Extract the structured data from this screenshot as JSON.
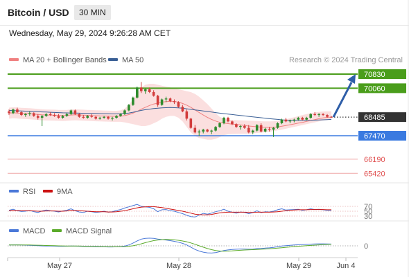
{
  "header": {
    "title": "Bitcoin / USD",
    "timeframe": "30 MIN"
  },
  "timestamp": "Wednesday, May 29, 2024 9:26:28 AM CET",
  "colors": {
    "resistance": "#4a9d1b",
    "support": "#3a7ae0",
    "current": "#333333",
    "extra_support": "#e05050",
    "up_candle": "#2e8b2e",
    "down_candle": "#d23c3c",
    "bollinger_fill": "#fad9d9",
    "ma20": "#f08080",
    "ma50": "#3a5f95",
    "rsi": "#4a78d8",
    "rsi_ma": "#cc1111",
    "macd": "#4a78d8",
    "macd_signal": "#5aaa2a",
    "arrow": "#2e5ea8"
  },
  "chart_data": [
    {
      "type": "candlestick",
      "legend": [
        {
          "name": "MA 20 + Bollinger Bands",
          "color": "#f08080"
        },
        {
          "name": "MA 50",
          "color": "#3a5f95"
        }
      ],
      "watermark": "Research © 2024 Trading Central",
      "x_tick_labels": [
        "May 27",
        "May 28",
        "May 29",
        "Jun 4"
      ],
      "levels": [
        {
          "value": 70830,
          "label": "70830",
          "kind": "resistance"
        },
        {
          "value": 70060,
          "label": "70060",
          "kind": "resistance"
        },
        {
          "value": 68485,
          "label": "68485",
          "kind": "current"
        },
        {
          "value": 67470,
          "label": "67470",
          "kind": "support"
        },
        {
          "value": 66190,
          "label": "66190",
          "kind": "extra_support"
        },
        {
          "value": 65420,
          "label": "65420",
          "kind": "extra_support"
        }
      ],
      "candles": [
        [
          68800,
          68900,
          68600,
          68700
        ],
        [
          68700,
          68950,
          68650,
          68900
        ],
        [
          68900,
          69000,
          68700,
          68750
        ],
        [
          68750,
          68800,
          68550,
          68600
        ],
        [
          68600,
          68700,
          68500,
          68650
        ],
        [
          68650,
          68800,
          68550,
          68700
        ],
        [
          68700,
          68750,
          68500,
          68550
        ],
        [
          68550,
          68650,
          68350,
          68450
        ],
        [
          68450,
          68600,
          68000,
          68550
        ],
        [
          68550,
          68700,
          68500,
          68650
        ],
        [
          68650,
          68750,
          68550,
          68600
        ],
        [
          68600,
          68700,
          68500,
          68550
        ],
        [
          68550,
          68650,
          68400,
          68450
        ],
        [
          68450,
          68600,
          68400,
          68550
        ],
        [
          68550,
          68700,
          68500,
          68650
        ],
        [
          68650,
          68900,
          68600,
          68850
        ],
        [
          68850,
          68900,
          68600,
          68650
        ],
        [
          68650,
          68700,
          68450,
          68500
        ],
        [
          68500,
          68600,
          68400,
          68450
        ],
        [
          68450,
          68600,
          68400,
          68550
        ],
        [
          68550,
          68650,
          68450,
          68500
        ],
        [
          68500,
          68550,
          68350,
          68400
        ],
        [
          68400,
          68500,
          68350,
          68450
        ],
        [
          68450,
          68550,
          68400,
          68500
        ],
        [
          68500,
          68550,
          68350,
          68400
        ],
        [
          68400,
          68500,
          68300,
          68450
        ],
        [
          68450,
          68600,
          68400,
          68550
        ],
        [
          68550,
          68700,
          68500,
          68650
        ],
        [
          68650,
          68900,
          68600,
          68850
        ],
        [
          68850,
          69200,
          68800,
          69150
        ],
        [
          69150,
          69600,
          69100,
          69550
        ],
        [
          69550,
          70150,
          69500,
          70100
        ],
        [
          70100,
          70400,
          69800,
          69900
        ],
        [
          69900,
          70050,
          69750,
          70000
        ],
        [
          70000,
          70100,
          69800,
          69850
        ],
        [
          69850,
          69950,
          69600,
          69650
        ],
        [
          69650,
          69700,
          69050,
          69150
        ],
        [
          69150,
          69500,
          69100,
          69450
        ],
        [
          69450,
          69600,
          69300,
          69500
        ],
        [
          69500,
          69550,
          69300,
          69350
        ],
        [
          69350,
          69450,
          69200,
          69300
        ],
        [
          69300,
          69350,
          69000,
          69050
        ],
        [
          69050,
          69150,
          68750,
          68800
        ],
        [
          68800,
          68900,
          68300,
          68400
        ],
        [
          68400,
          68450,
          67850,
          67900
        ],
        [
          67900,
          68050,
          67600,
          67650
        ],
        [
          67650,
          67800,
          67450,
          67700
        ],
        [
          67700,
          67850,
          67600,
          67800
        ],
        [
          67800,
          67850,
          67650,
          67700
        ],
        [
          67700,
          67800,
          67550,
          67750
        ],
        [
          67750,
          68000,
          67700,
          67950
        ],
        [
          67950,
          68200,
          67900,
          68150
        ],
        [
          68150,
          68500,
          68100,
          68450
        ],
        [
          68450,
          68500,
          68200,
          68250
        ],
        [
          68250,
          68300,
          68050,
          68100
        ],
        [
          68100,
          68150,
          67900,
          67950
        ],
        [
          67950,
          68050,
          67800,
          68000
        ],
        [
          68000,
          68100,
          67850,
          67900
        ],
        [
          67900,
          68050,
          67600,
          67650
        ],
        [
          67650,
          67800,
          67550,
          67750
        ],
        [
          67750,
          68100,
          67700,
          68050
        ],
        [
          68050,
          68150,
          67650,
          67700
        ],
        [
          67700,
          67900,
          67650,
          67850
        ],
        [
          67850,
          67950,
          67700,
          67800
        ],
        [
          67800,
          67950,
          67400,
          67900
        ],
        [
          67900,
          68200,
          67850,
          68150
        ],
        [
          68150,
          68400,
          68100,
          68350
        ],
        [
          68350,
          68450,
          68200,
          68250
        ],
        [
          68250,
          68350,
          68150,
          68300
        ],
        [
          68300,
          68400,
          68200,
          68350
        ],
        [
          68350,
          68500,
          68300,
          68450
        ],
        [
          68450,
          68500,
          68300,
          68350
        ],
        [
          68350,
          68500,
          68300,
          68450
        ],
        [
          68450,
          68700,
          68400,
          68650
        ],
        [
          68650,
          68750,
          68550,
          68600
        ],
        [
          68600,
          68700,
          68500,
          68650
        ],
        [
          68650,
          68700,
          68550,
          68600
        ],
        [
          68600,
          68650,
          68450,
          68500
        ],
        [
          68500,
          68550,
          68450,
          68485
        ]
      ],
      "ma20": [
        68700,
        68720,
        68710,
        68690,
        68680,
        68670,
        68650,
        68630,
        68610,
        68600,
        68595,
        68590,
        68580,
        68575,
        68580,
        68600,
        68610,
        68600,
        68590,
        68580,
        68570,
        68560,
        68550,
        68545,
        68540,
        68530,
        68530,
        68540,
        68570,
        68620,
        68700,
        68800,
        68920,
        69020,
        69120,
        69200,
        69250,
        69300,
        69330,
        69350,
        69340,
        69300,
        69230,
        69140,
        69020,
        68880,
        68740,
        68600,
        68470,
        68360,
        68270,
        68200,
        68160,
        68130,
        68100,
        68080,
        68060,
        68030,
        68000,
        67980,
        67960,
        67940,
        67930,
        67920,
        67930,
        67950,
        67990,
        68030,
        68070,
        68110,
        68160,
        68200,
        68250,
        68300,
        68350,
        68400,
        68440,
        68470,
        68485
      ],
      "bb_upper": [
        69000,
        69020,
        69010,
        68990,
        68980,
        68970,
        68950,
        68930,
        68910,
        68900,
        68895,
        68890,
        68880,
        68875,
        68880,
        68900,
        68910,
        68900,
        68890,
        68880,
        68870,
        68860,
        68850,
        68845,
        68840,
        68830,
        68830,
        68850,
        68950,
        69150,
        69450,
        69800,
        70100,
        70250,
        70300,
        70300,
        70250,
        70200,
        70150,
        70100,
        70050,
        70000,
        69950,
        69900,
        69850,
        69750,
        69600,
        69400,
        69200,
        68950,
        68700,
        68500,
        68400,
        68350,
        68330,
        68320,
        68310,
        68300,
        68290,
        68280,
        68270,
        68260,
        68250,
        68250,
        68260,
        68280,
        68320,
        68370,
        68420,
        68480,
        68540,
        68600,
        68650,
        68700,
        68740,
        68770,
        68790,
        68800,
        68800
      ],
      "bb_lower": [
        68400,
        68420,
        68410,
        68390,
        68380,
        68370,
        68350,
        68330,
        68310,
        68300,
        68295,
        68290,
        68280,
        68275,
        68280,
        68300,
        68310,
        68300,
        68290,
        68280,
        68270,
        68260,
        68250,
        68245,
        68240,
        68230,
        68230,
        68230,
        68200,
        68150,
        68100,
        68050,
        68000,
        68000,
        68050,
        68150,
        68250,
        68400,
        68500,
        68550,
        68550,
        68450,
        68250,
        67950,
        67650,
        67450,
        67350,
        67300,
        67250,
        67250,
        67300,
        67400,
        67500,
        67550,
        67560,
        67570,
        67580,
        67580,
        67580,
        67600,
        67620,
        67640,
        67660,
        67690,
        67720,
        67760,
        67800,
        67850,
        67900,
        67950,
        68000,
        68050,
        68100,
        68150,
        68200,
        68250,
        68300,
        68330,
        68350
      ],
      "ma50": [
        68850,
        68840,
        68830,
        68820,
        68810,
        68800,
        68790,
        68780,
        68770,
        68760,
        68750,
        68740,
        68730,
        68720,
        68715,
        68710,
        68705,
        68700,
        68695,
        68690,
        68685,
        68680,
        68675,
        68670,
        68665,
        68660,
        68660,
        68665,
        68680,
        68710,
        68750,
        68800,
        68850,
        68890,
        68920,
        68950,
        68970,
        68990,
        69000,
        69005,
        69000,
        68990,
        68970,
        68940,
        68910,
        68880,
        68850,
        68820,
        68790,
        68760,
        68730,
        68700,
        68675,
        68650,
        68625,
        68600,
        68575,
        68550,
        68525,
        68500,
        68475,
        68450,
        68425,
        68400,
        68380,
        68360,
        68340,
        68320,
        68310,
        68300,
        68300,
        68300,
        68305,
        68310,
        68320,
        68330,
        68340,
        68350,
        68360
      ],
      "forecast_arrow": {
        "from": 68485,
        "to": 70830
      }
    },
    {
      "type": "line",
      "legend": [
        {
          "name": "RSI",
          "color": "#4a78d8"
        },
        {
          "name": "9MA",
          "color": "#cc1111"
        }
      ],
      "levels": [
        70,
        50,
        30
      ],
      "y_tick_labels": [
        "70",
        "50",
        "30"
      ],
      "series": [
        {
          "name": "RSI",
          "values": [
            54,
            58,
            52,
            49,
            50,
            53,
            48,
            45,
            51,
            55,
            52,
            50,
            47,
            51,
            54,
            60,
            52,
            47,
            45,
            50,
            48,
            45,
            47,
            50,
            46,
            48,
            53,
            57,
            63,
            68,
            73,
            78,
            70,
            68,
            66,
            60,
            48,
            56,
            57,
            52,
            50,
            45,
            40,
            33,
            28,
            26,
            34,
            41,
            38,
            42,
            48,
            52,
            58,
            50,
            46,
            42,
            47,
            45,
            40,
            44,
            52,
            44,
            48,
            47,
            50,
            56,
            60,
            55,
            56,
            57,
            58,
            53,
            56,
            60,
            57,
            58,
            56,
            53,
            53
          ]
        },
        {
          "name": "9MA",
          "values": [
            52,
            53,
            53,
            52,
            52,
            52,
            51,
            50,
            50,
            51,
            51,
            51,
            50,
            50,
            51,
            53,
            53,
            52,
            51,
            50,
            49,
            48,
            48,
            48,
            47,
            47,
            48,
            50,
            52,
            56,
            60,
            64,
            67,
            68,
            69,
            69,
            67,
            65,
            62,
            59,
            56,
            53,
            50,
            46,
            42,
            38,
            36,
            35,
            35,
            37,
            40,
            43,
            45,
            46,
            46,
            46,
            46,
            46,
            45,
            45,
            46,
            46,
            46,
            46,
            47,
            48,
            50,
            52,
            54,
            55,
            56,
            56,
            56,
            57,
            57,
            57,
            57,
            56,
            56
          ]
        }
      ]
    },
    {
      "type": "line",
      "legend": [
        {
          "name": "MACD",
          "color": "#4a78d8"
        },
        {
          "name": "MACD Signal",
          "color": "#5aaa2a"
        }
      ],
      "y_tick_labels": [
        "0"
      ],
      "series": [
        {
          "name": "MACD",
          "values": [
            20,
            22,
            21,
            18,
            15,
            12,
            8,
            3,
            -2,
            -3,
            -4,
            -6,
            -9,
            -10,
            -8,
            -5,
            -6,
            -10,
            -14,
            -15,
            -17,
            -20,
            -22,
            -22,
            -24,
            -25,
            -22,
            -17,
            -5,
            20,
            60,
            110,
            150,
            165,
            170,
            165,
            150,
            140,
            130,
            115,
            100,
            80,
            55,
            20,
            -30,
            -80,
            -115,
            -140,
            -155,
            -160,
            -150,
            -130,
            -105,
            -90,
            -80,
            -75,
            -70,
            -70,
            -75,
            -72,
            -60,
            -58,
            -50,
            -45,
            -35,
            -20,
            -5,
            5,
            12,
            18,
            24,
            28,
            32,
            38,
            42,
            45,
            45,
            42,
            40
          ]
        },
        {
          "name": "MACD Signal",
          "values": [
            18,
            19,
            20,
            20,
            19,
            18,
            16,
            14,
            11,
            8,
            6,
            3,
            0,
            -2,
            -3,
            -3,
            -4,
            -5,
            -7,
            -9,
            -11,
            -13,
            -15,
            -17,
            -19,
            -20,
            -21,
            -20,
            -17,
            -10,
            2,
            20,
            45,
            70,
            95,
            115,
            130,
            138,
            142,
            140,
            134,
            123,
            108,
            90,
            65,
            35,
            2,
            -30,
            -60,
            -85,
            -105,
            -115,
            -118,
            -117,
            -112,
            -105,
            -98,
            -92,
            -87,
            -84,
            -80,
            -75,
            -70,
            -64,
            -58,
            -50,
            -42,
            -33,
            -25,
            -17,
            -10,
            -3,
            3,
            10,
            16,
            22,
            27,
            31,
            34
          ]
        }
      ]
    }
  ]
}
